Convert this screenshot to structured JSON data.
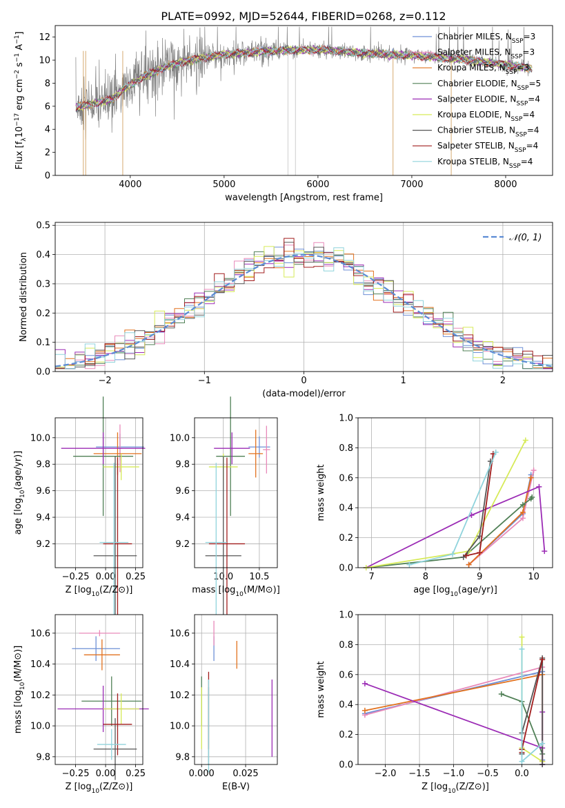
{
  "figure": {
    "title": "PLATE=0992, MJD=52644, FIBERID=0268, z=0.112"
  },
  "colors": {
    "Chabrier MILES": "#6d8fd6",
    "Salpeter MILES": "#e889b9",
    "Kroupa MILES": "#e2711d",
    "Chabrier ELODIE": "#4f7f55",
    "Salpeter ELODIE": "#9b2bb5",
    "Kroupa ELODIE": "#d6ea57",
    "Chabrier STELIB": "#555555",
    "Salpeter STELIB": "#a11c1c",
    "Kroupa STELIB": "#8fd3dc",
    "normal": "#5b8bd4",
    "grid": "#b0b0b0",
    "spectrum": "#808080"
  },
  "chart_data": [
    {
      "id": "spectrum",
      "type": "line",
      "xlabel": "wavelength [Angstrom, rest frame]",
      "ylabel": "Flux [f_λ10^-17 erg cm^-2 s^-1 A^-1]",
      "xlim": [
        3200,
        8500
      ],
      "ylim": [
        0,
        13
      ],
      "xticks": [
        4000,
        5000,
        6000,
        7000,
        8000
      ],
      "yticks": [
        0,
        2,
        4,
        6,
        8,
        10,
        12
      ],
      "grid": false,
      "legend": "right",
      "series": [
        {
          "name": "Chabrier MILES, N_SSP=3"
        },
        {
          "name": "Salpeter MILES, N_SSP=3"
        },
        {
          "name": "Kroupa MILES, N_SSP=3"
        },
        {
          "name": "Chabrier ELODIE, N_SSP=5"
        },
        {
          "name": "Salpeter ELODIE, N_SSP=4"
        },
        {
          "name": "Kroupa ELODIE, N_SSP=4"
        },
        {
          "name": "Chabrier STELIB, N_SSP=4"
        },
        {
          "name": "Salpeter STELIB, N_SSP=4"
        },
        {
          "name": "Kroupa STELIB, N_SSP=4"
        }
      ],
      "spectrum_range": [
        3420,
        8280
      ],
      "model_shape": [
        [
          3420,
          5.9
        ],
        [
          3650,
          6.3
        ],
        [
          3800,
          6.6
        ],
        [
          3950,
          7.6
        ],
        [
          4150,
          8.6
        ],
        [
          4400,
          9.5
        ],
        [
          4700,
          10.1
        ],
        [
          5000,
          10.5
        ],
        [
          5500,
          10.8
        ],
        [
          6000,
          10.9
        ],
        [
          6500,
          10.6
        ],
        [
          7000,
          10.4
        ],
        [
          7500,
          10.1
        ],
        [
          8000,
          9.6
        ],
        [
          8280,
          9.3
        ]
      ],
      "noise_cuts": [
        3500,
        3525,
        3920,
        5680,
        5760,
        6800,
        7420
      ]
    },
    {
      "id": "residuals",
      "type": "bar",
      "xlabel": "(data-model)/error",
      "ylabel": "Normed distribution",
      "xlim": [
        -2.5,
        2.5
      ],
      "ylim": [
        0,
        0.51
      ],
      "xticks": [
        -2,
        -1,
        0,
        1,
        2
      ],
      "yticks": [
        0.0,
        0.1,
        0.2,
        0.3,
        0.4,
        0.5
      ],
      "grid": true,
      "legend": "top-right",
      "normal_label": "𝒩(0, 1)",
      "bin_width": 0.1
    },
    {
      "id": "z-age",
      "type": "scatter",
      "xlabel": "Z [log10(Z/Z⊙)]",
      "ylabel": "age  [log10(age/yr)]",
      "xlim": [
        -0.42,
        0.31
      ],
      "ylim": [
        9.02,
        10.15
      ],
      "xticks": [
        -0.25,
        0.0,
        0.25
      ],
      "yticks": [
        9.2,
        9.4,
        9.6,
        9.8,
        10.0
      ],
      "grid": true,
      "points": [
        {
          "model": "Chabrier MILES",
          "x": 0.12,
          "xerr": 0.2,
          "y": 9.93,
          "yerr": 0.1
        },
        {
          "model": "Salpeter MILES",
          "x": 0.12,
          "xerr": 0.02,
          "y": 9.92,
          "yerr": 0.18
        },
        {
          "model": "Kroupa MILES",
          "x": 0.1,
          "xerr": 0.2,
          "y": 9.88,
          "yerr": 0.16
        },
        {
          "model": "Chabrier ELODIE",
          "x": -0.02,
          "xerr": 0.25,
          "y": 9.86,
          "yerr": 0.45
        },
        {
          "model": "Salpeter ELODIE",
          "x": -0.02,
          "xerr": 0.35,
          "y": 9.92,
          "yerr": 0.12
        },
        {
          "model": "Kroupa ELODIE",
          "x": 0.13,
          "xerr": 0.15,
          "y": 9.78,
          "yerr": 0.1
        },
        {
          "model": "Chabrier STELIB",
          "x": 0.08,
          "xerr": 0.18,
          "y": 9.11,
          "yerr": 0.75
        },
        {
          "model": "Salpeter STELIB",
          "x": 0.1,
          "xerr": 0.12,
          "y": 9.2,
          "yerr": 0.65
        },
        {
          "model": "Kroupa STELIB",
          "x": 0.07,
          "xerr": 0.12,
          "y": 9.21,
          "yerr": 0.6
        }
      ]
    },
    {
      "id": "mass-age",
      "type": "scatter",
      "xlabel": "mass [log10(M/M⊙)]",
      "ylabel": "",
      "xlim": [
        9.6,
        10.75
      ],
      "ylim": [
        9.02,
        10.15
      ],
      "xticks": [
        10.0,
        10.5
      ],
      "yticks": [
        9.2,
        9.4,
        9.6,
        9.8,
        10.0
      ],
      "grid": true,
      "points": [
        {
          "model": "Chabrier MILES",
          "x": 10.5,
          "xerr": 0.15,
          "y": 9.93,
          "yerr": 0.08
        },
        {
          "model": "Salpeter MILES",
          "x": 10.6,
          "xerr": 0.05,
          "y": 9.91,
          "yerr": 0.18
        },
        {
          "model": "Kroupa MILES",
          "x": 10.45,
          "xerr": 0.1,
          "y": 9.88,
          "yerr": 0.18
        },
        {
          "model": "Chabrier ELODIE",
          "x": 10.1,
          "xerr": 0.2,
          "y": 9.86,
          "yerr": 0.45
        },
        {
          "model": "Salpeter ELODIE",
          "x": 10.12,
          "xerr": 0.25,
          "y": 9.92,
          "yerr": 0.12
        },
        {
          "model": "Kroupa ELODIE",
          "x": 10.0,
          "xerr": 0.2,
          "y": 9.78,
          "yerr": 0.1
        },
        {
          "model": "Chabrier STELIB",
          "x": 10.0,
          "xerr": 0.25,
          "y": 9.11,
          "yerr": 0.75
        },
        {
          "model": "Salpeter STELIB",
          "x": 10.05,
          "xerr": 0.25,
          "y": 9.2,
          "yerr": 0.65
        },
        {
          "model": "Kroupa STELIB",
          "x": 9.9,
          "xerr": 0.15,
          "y": 9.21,
          "yerr": 0.6
        }
      ]
    },
    {
      "id": "age-weight",
      "type": "line",
      "xlabel": "age  [log10(age/yr)]",
      "ylabel": "mass weight",
      "xlim": [
        6.75,
        10.35
      ],
      "ylim": [
        0,
        1
      ],
      "xticks": [
        7,
        8,
        9,
        10
      ],
      "yticks": [
        0.0,
        0.2,
        0.4,
        0.6,
        0.8,
        1.0
      ],
      "grid": true,
      "series": [
        {
          "model": "Chabrier MILES",
          "x": [
            8.8,
            9.8,
            9.95
          ],
          "y": [
            0.02,
            0.36,
            0.62
          ]
        },
        {
          "model": "Salpeter MILES",
          "x": [
            8.8,
            9.8,
            10.0
          ],
          "y": [
            0.02,
            0.33,
            0.65
          ]
        },
        {
          "model": "Kroupa MILES",
          "x": [
            8.8,
            9.8,
            9.95
          ],
          "y": [
            0.02,
            0.37,
            0.6
          ]
        },
        {
          "model": "Chabrier ELODIE",
          "x": [
            6.9,
            8.7,
            9.8,
            9.95,
            9.97
          ],
          "y": [
            0.0,
            0.07,
            0.42,
            0.46,
            0.47
          ]
        },
        {
          "model": "Salpeter ELODIE",
          "x": [
            6.9,
            8.85,
            10.1,
            10.2
          ],
          "y": [
            0.0,
            0.35,
            0.54,
            0.11
          ]
        },
        {
          "model": "Kroupa ELODIE",
          "x": [
            6.9,
            8.8,
            9.85
          ],
          "y": [
            0.0,
            0.11,
            0.85
          ]
        },
        {
          "model": "Chabrier STELIB",
          "x": [
            8.7,
            9.0,
            9.2
          ],
          "y": [
            0.07,
            0.21,
            0.71
          ]
        },
        {
          "model": "Salpeter STELIB",
          "x": [
            8.75,
            9.0,
            9.25
          ],
          "y": [
            0.08,
            0.1,
            0.76
          ]
        },
        {
          "model": "Kroupa STELIB",
          "x": [
            7.7,
            8.5,
            9.3
          ],
          "y": [
            0.02,
            0.09,
            0.77
          ]
        }
      ]
    },
    {
      "id": "z-mass",
      "type": "scatter",
      "xlabel": "Z [log10(Z/Z⊙)]",
      "ylabel": "mass [log10(M/M⊙)]",
      "xlim": [
        -0.42,
        0.31
      ],
      "ylim": [
        9.75,
        10.72
      ],
      "xticks": [
        -0.25,
        0.0,
        0.25
      ],
      "yticks": [
        9.8,
        10.0,
        10.2,
        10.4,
        10.6
      ],
      "grid": true,
      "points": [
        {
          "model": "Chabrier MILES",
          "x": -0.08,
          "xerr": 0.2,
          "y": 10.5,
          "yerr": 0.08
        },
        {
          "model": "Salpeter MILES",
          "x": -0.05,
          "xerr": 0.17,
          "y": 10.6,
          "yerr": 0.02
        },
        {
          "model": "Kroupa MILES",
          "x": -0.03,
          "xerr": 0.15,
          "y": 10.46,
          "yerr": 0.1
        },
        {
          "model": "Chabrier ELODIE",
          "x": 0.05,
          "xerr": 0.25,
          "y": 10.16,
          "yerr": 0.16
        },
        {
          "model": "Salpeter ELODIE",
          "x": -0.02,
          "xerr": 0.38,
          "y": 10.11,
          "yerr": 0.15
        },
        {
          "model": "Kroupa ELODIE",
          "x": 0.13,
          "xerr": 0.15,
          "y": 10.11,
          "yerr": 0.1
        },
        {
          "model": "Chabrier STELIB",
          "x": 0.08,
          "xerr": 0.18,
          "y": 9.85,
          "yerr": 0.2
        },
        {
          "model": "Salpeter STELIB",
          "x": 0.1,
          "xerr": 0.12,
          "y": 10.01,
          "yerr": 0.2
        },
        {
          "model": "Kroupa STELIB",
          "x": 0.05,
          "xerr": 0.12,
          "y": 9.88,
          "yerr": 0.1
        }
      ]
    },
    {
      "id": "ebv-mass",
      "type": "scatter",
      "xlabel": "E(B-V)",
      "ylabel": "",
      "xlim": [
        -0.004,
        0.043
      ],
      "ylim": [
        9.75,
        10.72
      ],
      "xticks": [
        0.0,
        0.025
      ],
      "xticklabels": [
        "0.000",
        "0.025"
      ],
      "yticks": [
        9.8,
        10.0,
        10.2,
        10.4,
        10.6
      ],
      "grid": true,
      "points": [
        {
          "model": "Chabrier MILES",
          "x": 0.007,
          "y": 10.5,
          "yerr": 0.08
        },
        {
          "model": "Salpeter MILES",
          "x": 0.007,
          "y": 10.6,
          "yerr": 0.08
        },
        {
          "model": "Kroupa MILES",
          "x": 0.02,
          "y": 10.46,
          "yerr": 0.09
        },
        {
          "model": "Chabrier ELODIE",
          "x": 0.0,
          "y": 10.16,
          "yerr": 0.16
        },
        {
          "model": "Salpeter ELODIE",
          "x": 0.04,
          "y": 10.05,
          "yerr": 0.25
        },
        {
          "model": "Kroupa ELODIE",
          "x": 0.0,
          "y": 10.05,
          "yerr": 0.2
        },
        {
          "model": "Chabrier STELIB",
          "x": 0.004,
          "y": 10.0,
          "yerr": 0.25
        },
        {
          "model": "Salpeter STELIB",
          "x": 0.004,
          "y": 10.1,
          "yerr": 0.25
        },
        {
          "model": "Kroupa STELIB",
          "x": 0.004,
          "y": 10.0,
          "yerr": 0.3
        }
      ]
    },
    {
      "id": "z-weight",
      "type": "line",
      "xlabel": "Z [log10(Z/Z⊙)]",
      "ylabel": "mass weight",
      "xlim": [
        -2.4,
        0.45
      ],
      "ylim": [
        0,
        1
      ],
      "xticks": [
        -2.0,
        -1.5,
        -1.0,
        -0.5,
        0.0
      ],
      "yticks": [
        0.0,
        0.2,
        0.4,
        0.6,
        0.8,
        1.0
      ],
      "grid": true,
      "series": [
        {
          "model": "Chabrier MILES",
          "x": [
            -2.3,
            0.3,
            0.3
          ],
          "y": [
            0.34,
            0.62,
            0.03
          ]
        },
        {
          "model": "Salpeter MILES",
          "x": [
            -2.3,
            0.3,
            0.3
          ],
          "y": [
            0.33,
            0.65,
            0.02
          ]
        },
        {
          "model": "Kroupa MILES",
          "x": [
            -2.3,
            0.3,
            0.3
          ],
          "y": [
            0.36,
            0.6,
            0.02
          ]
        },
        {
          "model": "Chabrier ELODIE",
          "x": [
            -0.3,
            0.0,
            0.3
          ],
          "y": [
            0.47,
            0.42,
            0.07
          ]
        },
        {
          "model": "Salpeter ELODIE",
          "x": [
            -2.3,
            0.3,
            0.3,
            0.3
          ],
          "y": [
            0.54,
            0.11,
            0.35,
            0.0
          ]
        },
        {
          "model": "Kroupa ELODIE",
          "x": [
            0.0,
            0.0,
            0.3
          ],
          "y": [
            0.85,
            0.11,
            0.02
          ]
        },
        {
          "model": "Chabrier STELIB",
          "x": [
            0.0,
            0.0,
            0.3,
            0.3
          ],
          "y": [
            0.07,
            0.21,
            0.71,
            0.0
          ]
        },
        {
          "model": "Salpeter STELIB",
          "x": [
            0.0,
            0.0,
            0.3
          ],
          "y": [
            0.08,
            0.1,
            0.7
          ]
        },
        {
          "model": "Kroupa STELIB",
          "x": [
            0.0,
            0.0,
            0.3
          ],
          "y": [
            0.77,
            0.02,
            0.14
          ]
        }
      ]
    }
  ]
}
